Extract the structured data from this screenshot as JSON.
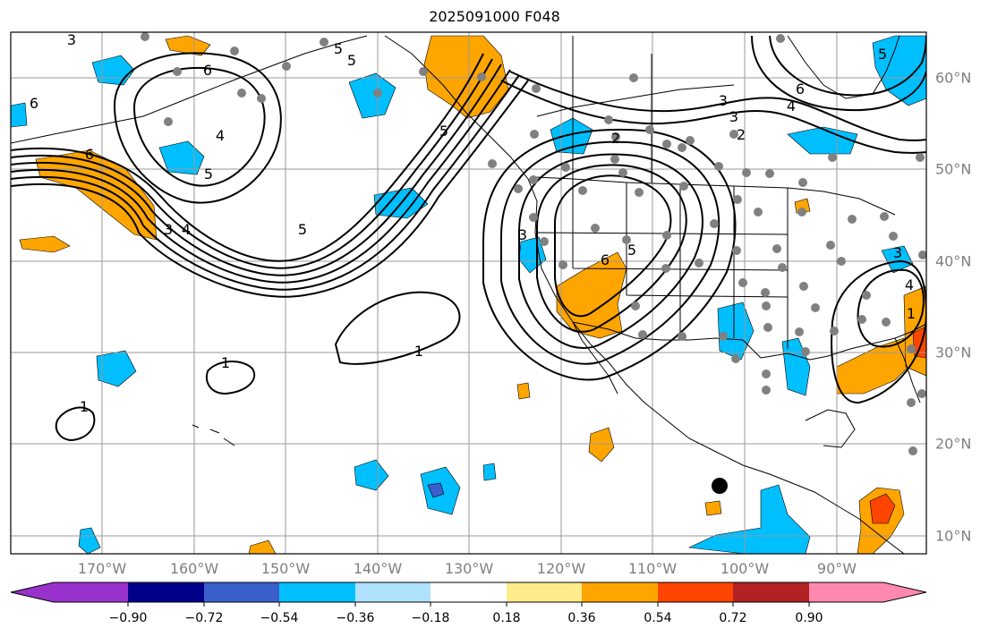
{
  "title": "2025091000 F048",
  "lon_labels": [
    "170°W",
    "160°W",
    "150°W",
    "140°W",
    "130°W",
    "120°W",
    "110°W",
    "100°W",
    "90°W"
  ],
  "lat_labels": [
    "60°N",
    "50°N",
    "40°N",
    "30°N",
    "20°N",
    "10°N"
  ],
  "contour_labels": [
    "3",
    "6",
    "6",
    "4",
    "5",
    "5",
    "6",
    "3",
    "4",
    "5",
    "5",
    "5",
    "1",
    "1",
    "1",
    "2",
    "3",
    "6",
    "3",
    "2",
    "5",
    "4",
    "6",
    "3",
    "5",
    "4",
    "3",
    "1"
  ],
  "colorbar": {
    "ticks": [
      "−0.90",
      "−0.72",
      "−0.54",
      "−0.36",
      "−0.18",
      "0.18",
      "0.36",
      "0.54",
      "0.72",
      "0.90"
    ],
    "colors": [
      "#9932CC",
      "#00008B",
      "#3A5FCD",
      "#00BFFF",
      "#B0E2FF",
      "#FFFFFF",
      "#FFEC8B",
      "#FFA500",
      "#FF4500",
      "#B22222",
      "#FF88B0"
    ]
  }
}
